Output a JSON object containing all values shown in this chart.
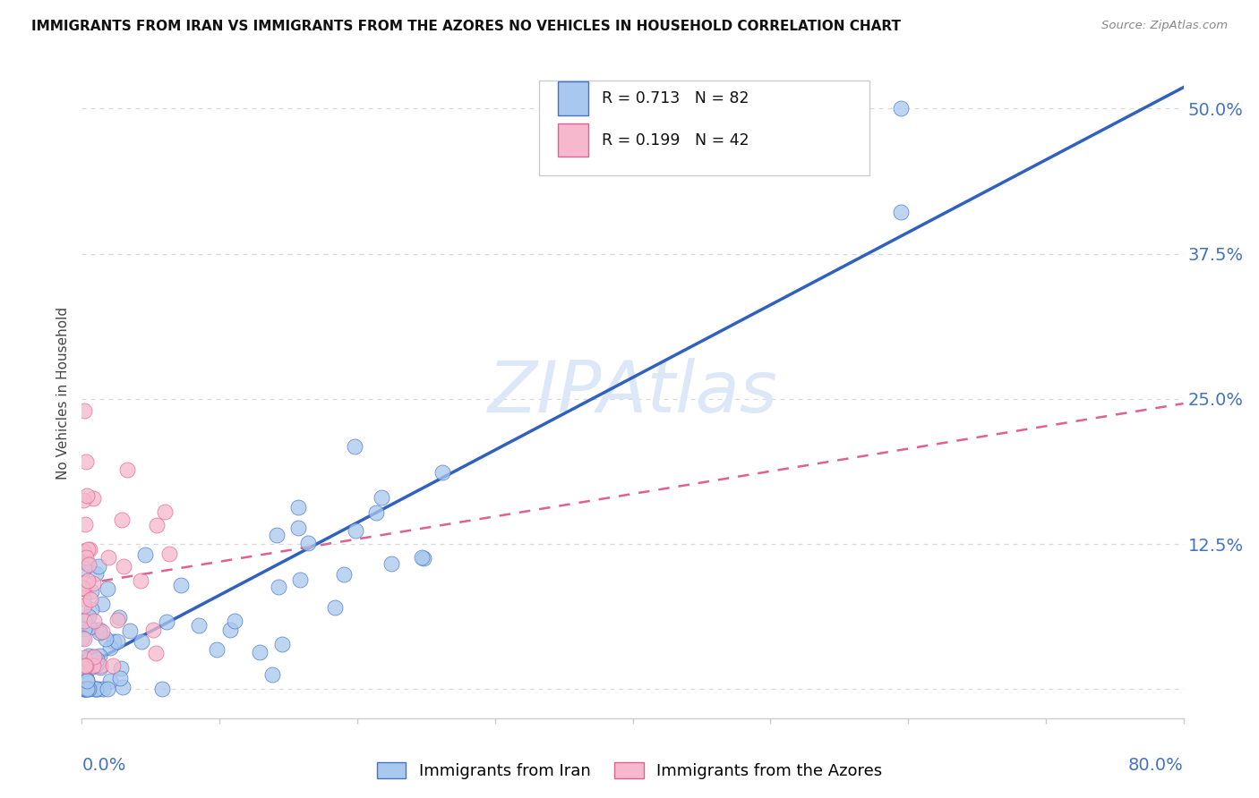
{
  "title": "IMMIGRANTS FROM IRAN VS IMMIGRANTS FROM THE AZORES NO VEHICLES IN HOUSEHOLD CORRELATION CHART",
  "source": "Source: ZipAtlas.com",
  "ylabel": "No Vehicles in Household",
  "ytick_vals": [
    0.0,
    0.125,
    0.25,
    0.375,
    0.5
  ],
  "ytick_labels": [
    "",
    "12.5%",
    "25.0%",
    "37.5%",
    "50.0%"
  ],
  "xmin": 0.0,
  "xmax": 0.8,
  "ymin": -0.025,
  "ymax": 0.535,
  "iran_R": 0.713,
  "iran_N": 82,
  "azores_R": 0.199,
  "azores_N": 42,
  "iran_scatter_color": "#a8c8ee",
  "iran_edge_color": "#4472c4",
  "azores_scatter_color": "#f5b8cc",
  "azores_edge_color": "#e06090",
  "iran_line_color": "#3060c0",
  "azores_line_color": "#e06090",
  "grid_color": "#d8d8d8",
  "watermark_color": "#dce8f8",
  "label_color": "#4472c4",
  "iran_line_intercept": 0.02,
  "iran_line_slope": 0.52,
  "azores_line_intercept": 0.085,
  "azores_line_slope": 0.38
}
